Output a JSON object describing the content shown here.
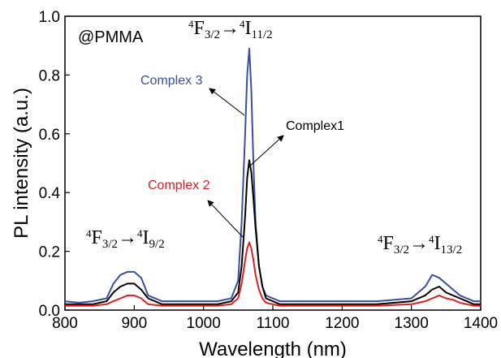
{
  "chart_data": {
    "type": "line",
    "xlabel": "Wavelength (nm)",
    "ylabel": "PL intensity (a.u.)",
    "xlim": [
      800,
      1400
    ],
    "ylim": [
      0,
      1.0
    ],
    "xticks": [
      800,
      900,
      1000,
      1100,
      1200,
      1300,
      1400
    ],
    "yticks": [
      0.0,
      0.2,
      0.4,
      0.6,
      0.8,
      1.0
    ],
    "xtick_labels": [
      "800",
      "900",
      "1000",
      "1100",
      "1200",
      "1300",
      "1400"
    ],
    "ytick_labels": [
      "0.0",
      "0.2",
      "0.4",
      "0.6",
      "0.8",
      "1.0"
    ],
    "grid": false,
    "annotations": {
      "matrix": "@PMMA",
      "transition_main": {
        "upper": "4",
        "f": "F",
        "f_sub": "3/2",
        "arrow": "→",
        "lower_sup": "4",
        "i": "I",
        "i_sub": "11/2"
      },
      "transition_left": {
        "upper": "4",
        "f": "F",
        "f_sub": "3/2",
        "arrow": "→",
        "lower_sup": "4",
        "i": "I",
        "i_sub": "9/2"
      },
      "transition_right": {
        "upper": "4",
        "f": "F",
        "f_sub": "3/2",
        "arrow": "→",
        "lower_sup": "4",
        "i": "I",
        "i_sub": "13/2"
      }
    },
    "series": [
      {
        "name": "Complex 3",
        "color": "#3b4fa0",
        "x": [
          800,
          820,
          840,
          860,
          870,
          880,
          890,
          900,
          910,
          920,
          940,
          960,
          980,
          1000,
          1020,
          1040,
          1050,
          1055,
          1060,
          1063,
          1066,
          1069,
          1072,
          1075,
          1080,
          1085,
          1090,
          1100,
          1110,
          1130,
          1150,
          1180,
          1200,
          1250,
          1300,
          1320,
          1330,
          1340,
          1350,
          1360,
          1370,
          1380,
          1390,
          1400
        ],
        "y": [
          0.03,
          0.025,
          0.03,
          0.04,
          0.09,
          0.12,
          0.13,
          0.13,
          0.11,
          0.05,
          0.03,
          0.03,
          0.03,
          0.03,
          0.03,
          0.04,
          0.1,
          0.3,
          0.6,
          0.8,
          0.89,
          0.75,
          0.5,
          0.3,
          0.15,
          0.08,
          0.05,
          0.04,
          0.03,
          0.03,
          0.03,
          0.03,
          0.03,
          0.03,
          0.04,
          0.08,
          0.12,
          0.11,
          0.09,
          0.07,
          0.05,
          0.04,
          0.03,
          0.03
        ]
      },
      {
        "name": "Complex1",
        "color": "#000000",
        "x": [
          800,
          820,
          840,
          860,
          870,
          880,
          890,
          900,
          910,
          920,
          940,
          960,
          980,
          1000,
          1020,
          1040,
          1050,
          1055,
          1060,
          1063,
          1066,
          1069,
          1072,
          1075,
          1080,
          1085,
          1090,
          1100,
          1110,
          1130,
          1150,
          1180,
          1200,
          1250,
          1300,
          1320,
          1330,
          1340,
          1350,
          1360,
          1370,
          1380,
          1390,
          1400
        ],
        "y": [
          0.02,
          0.02,
          0.02,
          0.03,
          0.06,
          0.08,
          0.09,
          0.09,
          0.07,
          0.04,
          0.02,
          0.02,
          0.02,
          0.02,
          0.02,
          0.03,
          0.06,
          0.15,
          0.32,
          0.45,
          0.51,
          0.47,
          0.38,
          0.28,
          0.15,
          0.08,
          0.04,
          0.03,
          0.02,
          0.02,
          0.02,
          0.02,
          0.02,
          0.02,
          0.03,
          0.05,
          0.07,
          0.08,
          0.06,
          0.05,
          0.04,
          0.03,
          0.02,
          0.02
        ]
      },
      {
        "name": "Complex 2",
        "color": "#e11e1e",
        "x": [
          800,
          820,
          840,
          860,
          870,
          880,
          890,
          900,
          910,
          920,
          940,
          960,
          980,
          1000,
          1020,
          1040,
          1050,
          1055,
          1060,
          1063,
          1066,
          1069,
          1072,
          1075,
          1080,
          1085,
          1090,
          1100,
          1110,
          1130,
          1150,
          1180,
          1200,
          1250,
          1300,
          1320,
          1330,
          1340,
          1350,
          1360,
          1370,
          1380,
          1390,
          1400
        ],
        "y": [
          0.015,
          0.015,
          0.015,
          0.02,
          0.03,
          0.04,
          0.05,
          0.05,
          0.04,
          0.02,
          0.015,
          0.015,
          0.015,
          0.015,
          0.015,
          0.02,
          0.04,
          0.09,
          0.17,
          0.21,
          0.23,
          0.21,
          0.17,
          0.12,
          0.07,
          0.04,
          0.025,
          0.02,
          0.015,
          0.015,
          0.015,
          0.015,
          0.015,
          0.015,
          0.02,
          0.03,
          0.04,
          0.05,
          0.04,
          0.035,
          0.025,
          0.02,
          0.015,
          0.015
        ]
      }
    ]
  }
}
